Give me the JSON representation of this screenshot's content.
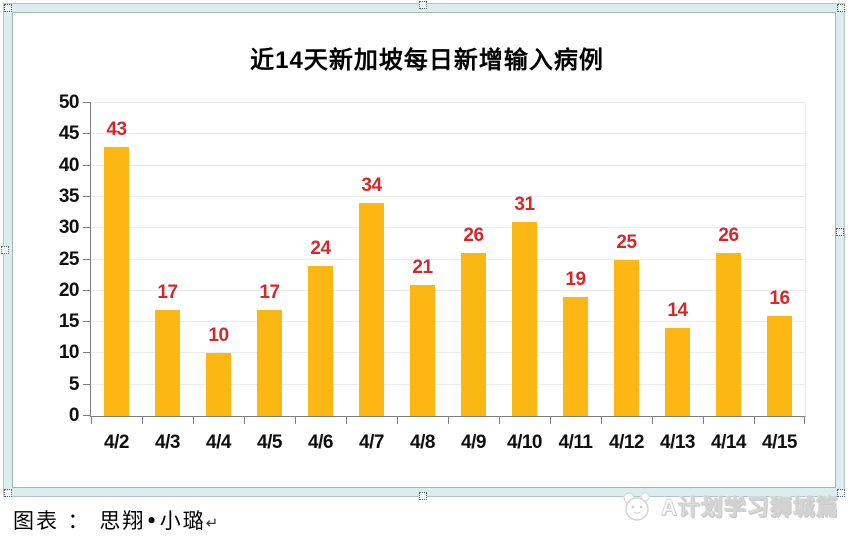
{
  "chart_data": {
    "type": "bar",
    "title": "近14天新加坡每日新增输入病例",
    "categories": [
      "4/2",
      "4/3",
      "4/4",
      "4/5",
      "4/6",
      "4/7",
      "4/8",
      "4/9",
      "4/10",
      "4/11",
      "4/12",
      "4/13",
      "4/14",
      "4/15"
    ],
    "values": [
      43,
      17,
      10,
      17,
      24,
      34,
      21,
      26,
      31,
      19,
      25,
      14,
      26,
      16
    ],
    "xlabel": "",
    "ylabel": "",
    "ylim": [
      0,
      50
    ],
    "ytick_step": 5,
    "grid": true,
    "legend_position": "none",
    "bar_color": "#FCB714",
    "value_label_color": "#D2292E",
    "axis_color": "#7f7f7f",
    "tick_label_color": "#0f0f0f"
  },
  "footer": {
    "caption_text": "图表 ： 思翔•小璐",
    "return_mark": "↵"
  },
  "watermark": {
    "logo": "mascot-face-logo",
    "text": "A计划学习狮城篇"
  }
}
